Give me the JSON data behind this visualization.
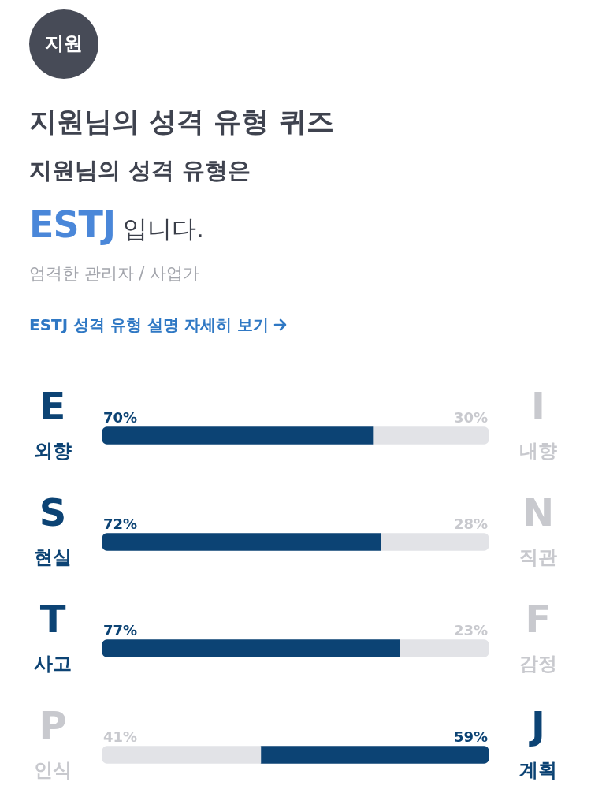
{
  "chart_data": {
    "type": "bar",
    "orientation": "horizontal",
    "stacked": true,
    "title": "지원님의 성격 유형 퀴즈",
    "subtitle": "지원님의 성격 유형은",
    "annotations": [
      "지원",
      "ESTJ",
      "입니다.",
      "엄격한 관리자 / 사업가",
      "ESTJ 성격 유형 설명 자세히 보기"
    ],
    "categories": [
      "E\n외향",
      "S\n현실",
      "T\n사고",
      "P\n인식"
    ],
    "y2_categories": [
      "I\n내향",
      "N\n직관",
      "F\n감정",
      "J\n계획"
    ],
    "tick_labels": "y",
    "series": [
      {
        "colors": [
          "#0c4374",
          "#0c4374",
          "#0c4374",
          "#e2e3e7"
        ],
        "values": [
          70,
          72,
          77,
          41
        ],
        "value_labels": [
          "70%",
          "72%",
          "77%",
          "41%"
        ]
      },
      {
        "colors": [
          "#e2e3e7",
          "#e2e3e7",
          "#e2e3e7",
          "#0c4374"
        ],
        "values": [
          30,
          28,
          23,
          59
        ],
        "value_labels": [
          "30%",
          "28%",
          "23%",
          "59%"
        ]
      }
    ]
  }
}
